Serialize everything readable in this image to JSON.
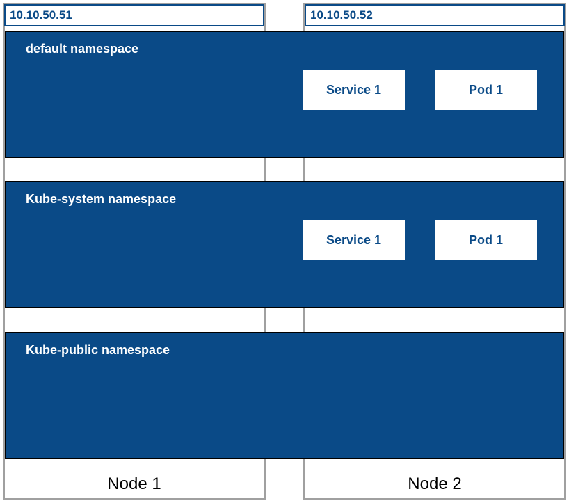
{
  "diagram": {
    "type": "infographic",
    "background_color": "#ffffff",
    "node_border_color": "#a0a0a0",
    "ip_border_color": "#0a4a87",
    "namespace_bg": "#0a4a87",
    "namespace_border": "#000000",
    "box_bg": "#ffffff",
    "box_text_color": "#0a4a87",
    "ns_title_color": "#ffffff",
    "ip_text_color": "#0a4a87",
    "node_label_color": "#000000",
    "title_fontsize": 18,
    "label_fontsize": 24,
    "ip_fontsize": 17,
    "box_fontsize": 18
  },
  "nodes": [
    {
      "ip": "10.10.50.51",
      "label": "Node 1"
    },
    {
      "ip": "10.10.50.52",
      "label": "Node 2"
    }
  ],
  "namespaces": [
    {
      "title": "default namespace",
      "resources": [
        {
          "label": "Service 1",
          "kind": "service"
        },
        {
          "label": "Pod 1",
          "kind": "pod"
        }
      ]
    },
    {
      "title": "Kube-system namespace",
      "resources": [
        {
          "label": "Service 1",
          "kind": "service"
        },
        {
          "label": "Pod 1",
          "kind": "pod"
        }
      ]
    },
    {
      "title": "Kube-public namespace",
      "resources": []
    }
  ]
}
